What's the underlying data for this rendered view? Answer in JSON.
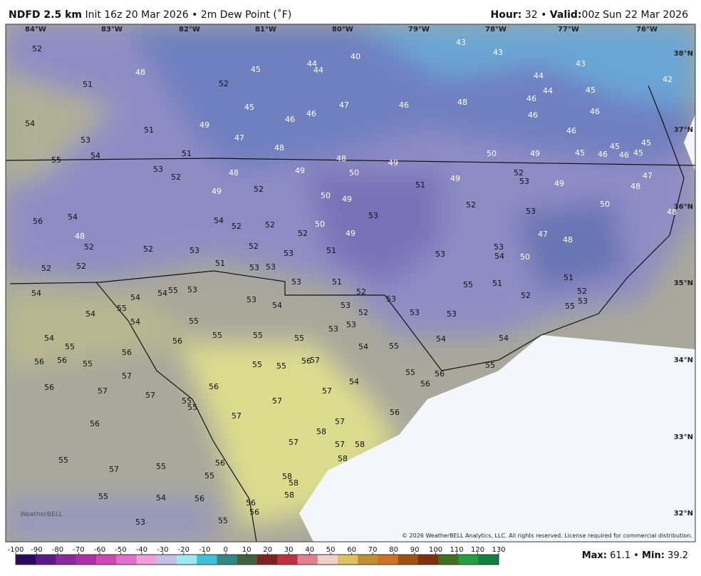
{
  "header": {
    "model": "NDFD 2.5 km",
    "init": "Init 16z 20 Mar 2026",
    "separator": "•",
    "field": "2m Dew Point (˚F)",
    "hour_label": "Hour:",
    "hour": "32",
    "valid_label": "Valid:",
    "valid": "00z Sun 22 Mar 2026"
  },
  "map": {
    "longitudes": [
      "84°W",
      "83°W",
      "82°W",
      "81°W",
      "80°W",
      "79°W",
      "78°W",
      "77°W",
      "76°W"
    ],
    "latitudes": [
      "38°N",
      "37°N",
      "36°N",
      "35°N",
      "34°N",
      "33°N",
      "32°N"
    ],
    "values": [
      52,
      48,
      51,
      52,
      45,
      44,
      44,
      40,
      43,
      43,
      43,
      44,
      44,
      46,
      46,
      45,
      46,
      42,
      54,
      53,
      51,
      49,
      45,
      46,
      46,
      47,
      46,
      48,
      47,
      48,
      48,
      49,
      50,
      49,
      46,
      45,
      46,
      45,
      46,
      45,
      45,
      55,
      54,
      51,
      53,
      52,
      48,
      49,
      50,
      52,
      53,
      49,
      47,
      48,
      56,
      54,
      48,
      52,
      52,
      52,
      52,
      49,
      52,
      50,
      49,
      51,
      49,
      52,
      53,
      50,
      48,
      54,
      52,
      52,
      52,
      50,
      49,
      53,
      53,
      52,
      53,
      51,
      53,
      53,
      54,
      47,
      48,
      50,
      51,
      53,
      53,
      53,
      51,
      52,
      53,
      54,
      54,
      54,
      55,
      53,
      53,
      54,
      55,
      54,
      54,
      55,
      53,
      52,
      53,
      53,
      55,
      51,
      52,
      51,
      52,
      53,
      55,
      56,
      55,
      55,
      55,
      53,
      53,
      54,
      55,
      54,
      54,
      54,
      55,
      56,
      56,
      55,
      56,
      57,
      55,
      55,
      56,
      57,
      55,
      56,
      55,
      56,
      57,
      57,
      55,
      56,
      57,
      57,
      54,
      56,
      55,
      57,
      56,
      56,
      57,
      58,
      57,
      57,
      58,
      58,
      55,
      57,
      55,
      56,
      55,
      58,
      58,
      58,
      55,
      54,
      56,
      56,
      56,
      55,
      53
    ],
    "logo": "WeatherBELL",
    "copyright": "© 2026 WeatherBELL Analytics, LLC. All rights reserved. License required for commercial distribution."
  },
  "colorbar": {
    "ticks": [
      -100,
      -90,
      -80,
      -70,
      -60,
      -50,
      -40,
      -30,
      -20,
      -10,
      0,
      10,
      20,
      30,
      40,
      50,
      60,
      70,
      80,
      90,
      100,
      110,
      120,
      130
    ]
  },
  "stats": {
    "max_label": "Max:",
    "max": 61.1,
    "separator": "•",
    "min_label": "Min:",
    "min": 39.2
  }
}
